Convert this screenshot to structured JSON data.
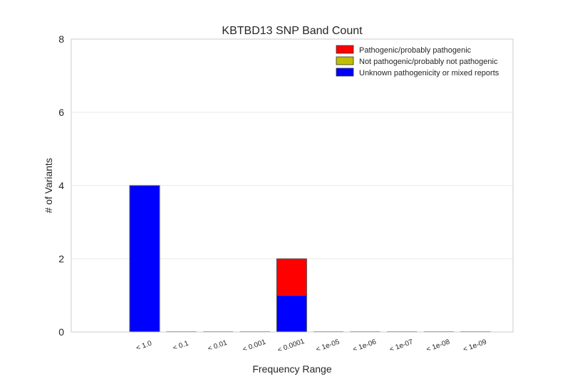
{
  "chart_data": {
    "type": "bar",
    "stacked": true,
    "title": "KBTBD13 SNP Band Count",
    "xlabel": "Frequency Range",
    "ylabel": "# of Variants",
    "categories": [
      "< 1.0",
      "< 0.1",
      "< 0.01",
      "< 0.001",
      "< 0.0001",
      "< 1e-05",
      "< 1e-06",
      "< 1e-07",
      "< 1e-08",
      "< 1e-09"
    ],
    "ylim": [
      0,
      8
    ],
    "yticks": [
      "0",
      "2",
      "4",
      "6",
      "8"
    ],
    "grid": "horizontal",
    "legend_position": "top-right",
    "series": [
      {
        "name": "Unknown pathogenicity or mixed reports",
        "color": "#0000ff",
        "values": [
          4,
          0,
          0,
          0,
          1,
          0,
          0,
          0,
          0,
          0
        ]
      },
      {
        "name": "Not pathogenic/probably not pathogenic",
        "color": "#bfbf00",
        "values": [
          0,
          0,
          0,
          0,
          0,
          0,
          0,
          0,
          0,
          0
        ]
      },
      {
        "name": "Pathogenic/probably pathogenic",
        "color": "#ff0000",
        "values": [
          0,
          0,
          0,
          0,
          1,
          0,
          0,
          0,
          0,
          0
        ]
      }
    ],
    "legend_order": [
      2,
      1,
      0
    ]
  }
}
